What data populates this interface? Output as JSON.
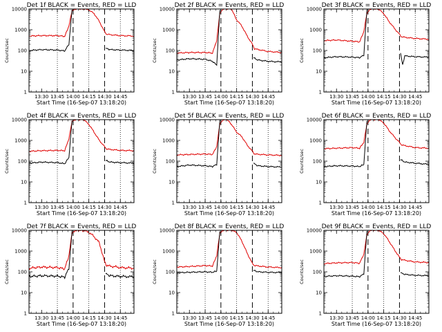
{
  "figure": {
    "start_time_label": "Start Time (16-Sep-07 13:18:20)",
    "ylabel": "Counts/sec"
  },
  "colors": {
    "events": "#000000",
    "lld": "#e00000",
    "background": "#ffffff"
  },
  "chart_data": [
    {
      "type": "line",
      "title": "Det 1f BLACK = Events, RED = LLD",
      "xlabel": "Start Time (16-Sep-07 13:18:20)",
      "ylabel": "Counts/sec",
      "xlim": [
        "13:18",
        "14:58"
      ],
      "ylim": [
        1,
        10000
      ],
      "yscale": "log",
      "xtick_labels": [
        "13:30",
        "13:45",
        "14:00",
        "14:15",
        "14:30",
        "14:45"
      ],
      "ytick_labels": [
        "1",
        "10",
        "100",
        "1000",
        "10000"
      ],
      "dotted_lines": [
        "13:45",
        "14:15",
        "14:45"
      ],
      "dashed_lines": [
        "14:00",
        "14:30"
      ],
      "series": [
        {
          "name": "LLD",
          "color": "#e00000",
          "x": [
            "13:18",
            "13:30",
            "13:45",
            "13:52",
            "13:56",
            "13:59",
            "14:02",
            "14:06",
            "14:10",
            "14:15",
            "14:20",
            "14:25",
            "14:30",
            "14:32",
            "14:45",
            "14:58"
          ],
          "y": [
            500,
            520,
            520,
            480,
            1500,
            8000,
            10000,
            10000,
            10000,
            9000,
            6000,
            2500,
            800,
            600,
            520,
            500
          ]
        },
        {
          "name": "Events",
          "color": "#000000",
          "x": [
            "13:18",
            "13:30",
            "13:45",
            "13:52",
            "13:56",
            "13:59",
            "14:30",
            "14:31",
            "14:35",
            "14:45",
            "14:58"
          ],
          "y": [
            100,
            110,
            105,
            95,
            200,
            9000,
            null,
            130,
            110,
            105,
            100
          ]
        }
      ]
    },
    {
      "type": "line",
      "title": "Det 2f BLACK = Events, RED = LLD",
      "xlabel": "Start Time (16-Sep-07 13:18:20)",
      "ylabel": "Counts/sec",
      "xlim": [
        "13:18",
        "14:58"
      ],
      "ylim": [
        1,
        10000
      ],
      "yscale": "log",
      "xtick_labels": [
        "13:30",
        "13:45",
        "14:00",
        "14:15",
        "14:30",
        "14:45"
      ],
      "ytick_labels": [
        "1",
        "10",
        "100",
        "1000",
        "10000"
      ],
      "dotted_lines": [
        "13:45",
        "14:15",
        "14:45"
      ],
      "dashed_lines": [
        "14:00",
        "14:30"
      ],
      "series": [
        {
          "name": "LLD",
          "color": "#e00000",
          "x": [
            "13:18",
            "13:30",
            "13:45",
            "13:52",
            "13:56",
            "13:59",
            "14:02",
            "14:06",
            "14:10",
            "14:15",
            "14:20",
            "14:25",
            "14:30",
            "14:32",
            "14:45",
            "14:58"
          ],
          "y": [
            75,
            80,
            80,
            75,
            300,
            6000,
            10000,
            10000,
            10000,
            3000,
            1500,
            500,
            200,
            120,
            90,
            80
          ]
        },
        {
          "name": "Events",
          "color": "#000000",
          "x": [
            "13:18",
            "13:30",
            "13:45",
            "13:52",
            "13:56",
            "13:59",
            "14:30",
            "14:31",
            "14:35",
            "14:45",
            "14:58"
          ],
          "y": [
            35,
            40,
            38,
            30,
            20,
            9000,
            null,
            45,
            35,
            30,
            28
          ]
        }
      ]
    },
    {
      "type": "line",
      "title": "Det 3f BLACK = Events, RED = LLD",
      "xlabel": "Start Time (16-Sep-07 13:18:20)",
      "ylabel": "Counts/sec",
      "xlim": [
        "13:18",
        "14:58"
      ],
      "ylim": [
        1,
        10000
      ],
      "yscale": "log",
      "xtick_labels": [
        "13:30",
        "13:45",
        "14:00",
        "14:15",
        "14:30",
        "14:45"
      ],
      "ytick_labels": [
        "1",
        "10",
        "100",
        "1000",
        "10000"
      ],
      "dotted_lines": [
        "13:45",
        "14:15",
        "14:45"
      ],
      "dashed_lines": [
        "14:00",
        "14:30"
      ],
      "series": [
        {
          "name": "LLD",
          "color": "#e00000",
          "x": [
            "13:18",
            "13:30",
            "13:45",
            "13:52",
            "13:56",
            "13:59",
            "14:02",
            "14:06",
            "14:10",
            "14:15",
            "14:20",
            "14:25",
            "14:30",
            "14:32",
            "14:45",
            "14:58"
          ],
          "y": [
            300,
            320,
            280,
            260,
            800,
            6000,
            10000,
            10000,
            10000,
            6000,
            2500,
            1200,
            600,
            450,
            380,
            350
          ]
        },
        {
          "name": "Events",
          "color": "#000000",
          "x": [
            "13:18",
            "13:30",
            "13:45",
            "13:52",
            "13:56",
            "13:59",
            "14:30",
            "14:31",
            "14:33",
            "14:35",
            "14:45",
            "14:58"
          ],
          "y": [
            45,
            50,
            48,
            45,
            60,
            9000,
            null,
            75,
            20,
            55,
            50,
            48
          ]
        }
      ]
    },
    {
      "type": "line",
      "title": "Det 4f BLACK = Events, RED = LLD",
      "xlabel": "Start Time (16-Sep-07 13:18:20)",
      "ylabel": "Counts/sec",
      "xlim": [
        "13:18",
        "14:58"
      ],
      "ylim": [
        1,
        10000
      ],
      "yscale": "log",
      "xtick_labels": [
        "13:30",
        "13:45",
        "14:00",
        "14:15",
        "14:30",
        "14:45"
      ],
      "ytick_labels": [
        "1",
        "10",
        "100",
        "1000",
        "10000"
      ],
      "dotted_lines": [
        "13:45",
        "14:15",
        "14:45"
      ],
      "dashed_lines": [
        "14:00",
        "14:30"
      ],
      "series": [
        {
          "name": "LLD",
          "color": "#e00000",
          "x": [
            "13:18",
            "13:30",
            "13:45",
            "13:52",
            "13:56",
            "13:59",
            "14:02",
            "14:06",
            "14:10",
            "14:15",
            "14:20",
            "14:25",
            "14:30",
            "14:32",
            "14:45",
            "14:58"
          ],
          "y": [
            300,
            320,
            330,
            320,
            1200,
            8000,
            10000,
            10000,
            10000,
            6000,
            2500,
            1000,
            500,
            380,
            330,
            320
          ]
        },
        {
          "name": "Events",
          "color": "#000000",
          "x": [
            "13:18",
            "13:30",
            "13:45",
            "13:52",
            "13:56",
            "13:59",
            "14:30",
            "14:31",
            "14:35",
            "14:45",
            "14:58"
          ],
          "y": [
            80,
            90,
            85,
            75,
            150,
            9000,
            null,
            110,
            90,
            85,
            80
          ]
        }
      ]
    },
    {
      "type": "line",
      "title": "Det 5f BLACK = Events, RED = LLD",
      "xlabel": "Start Time (16-Sep-07 13:18:20)",
      "ylabel": "Counts/sec",
      "xlim": [
        "13:18",
        "14:58"
      ],
      "ylim": [
        1,
        10000
      ],
      "yscale": "log",
      "xtick_labels": [
        "13:30",
        "13:45",
        "14:00",
        "14:15",
        "14:30",
        "14:45"
      ],
      "ytick_labels": [
        "1",
        "10",
        "100",
        "1000",
        "10000"
      ],
      "dotted_lines": [
        "13:45",
        "14:15",
        "14:45"
      ],
      "dashed_lines": [
        "14:00",
        "14:30"
      ],
      "series": [
        {
          "name": "LLD",
          "color": "#e00000",
          "x": [
            "13:18",
            "13:30",
            "13:45",
            "13:52",
            "13:56",
            "13:59",
            "14:02",
            "14:06",
            "14:10",
            "14:15",
            "14:20",
            "14:25",
            "14:30",
            "14:32",
            "14:45",
            "14:58"
          ],
          "y": [
            200,
            210,
            220,
            210,
            500,
            6000,
            10000,
            10000,
            6000,
            2500,
            1500,
            600,
            300,
            220,
            200,
            190
          ]
        },
        {
          "name": "Events",
          "color": "#000000",
          "x": [
            "13:18",
            "13:30",
            "13:45",
            "13:52",
            "13:56",
            "13:59",
            "14:30",
            "14:31",
            "14:35",
            "14:45",
            "14:58"
          ],
          "y": [
            55,
            65,
            60,
            55,
            70,
            9000,
            null,
            80,
            60,
            55,
            52
          ]
        }
      ]
    },
    {
      "type": "line",
      "title": "Det 6f BLACK = Events, RED = LLD",
      "xlabel": "Start Time (16-Sep-07 13:18:20)",
      "ylabel": "Counts/sec",
      "xlim": [
        "13:18",
        "14:58"
      ],
      "ylim": [
        1,
        10000
      ],
      "yscale": "log",
      "xtick_labels": [
        "13:30",
        "13:45",
        "14:00",
        "14:15",
        "14:30",
        "14:45"
      ],
      "ytick_labels": [
        "1",
        "10",
        "100",
        "1000",
        "10000"
      ],
      "dotted_lines": [
        "13:45",
        "14:15",
        "14:45"
      ],
      "dashed_lines": [
        "14:00",
        "14:30"
      ],
      "series": [
        {
          "name": "LLD",
          "color": "#e00000",
          "x": [
            "13:18",
            "13:30",
            "13:45",
            "13:52",
            "13:56",
            "13:59",
            "14:02",
            "14:06",
            "14:10",
            "14:15",
            "14:20",
            "14:25",
            "14:30",
            "14:32",
            "14:45",
            "14:58"
          ],
          "y": [
            400,
            420,
            450,
            420,
            800,
            6000,
            10000,
            10000,
            10000,
            7000,
            3000,
            1500,
            800,
            600,
            450,
            420
          ]
        },
        {
          "name": "Events",
          "color": "#000000",
          "x": [
            "13:18",
            "13:30",
            "13:45",
            "13:52",
            "13:56",
            "13:59",
            "14:30",
            "14:31",
            "14:35",
            "14:45",
            "14:58"
          ],
          "y": [
            55,
            60,
            58,
            55,
            70,
            9000,
            null,
            120,
            90,
            80,
            70
          ]
        }
      ]
    },
    {
      "type": "line",
      "title": "Det 7f BLACK = Events, RED = LLD",
      "xlabel": "Start Time (16-Sep-07 13:18:20)",
      "ylabel": "Counts/sec",
      "xlim": [
        "13:18",
        "14:58"
      ],
      "ylim": [
        1,
        10000
      ],
      "yscale": "log",
      "xtick_labels": [
        "13:30",
        "13:45",
        "14:00",
        "14:15",
        "14:30",
        "14:45"
      ],
      "ytick_labels": [
        "1",
        "10",
        "100",
        "1000",
        "10000"
      ],
      "dotted_lines": [
        "13:45",
        "14:15",
        "14:45"
      ],
      "dashed_lines": [
        "14:00",
        "14:30"
      ],
      "series": [
        {
          "name": "LLD",
          "color": "#e00000",
          "x": [
            "13:18",
            "13:30",
            "13:45",
            "13:52",
            "13:56",
            "13:59",
            "14:02",
            "14:06",
            "14:10",
            "14:15",
            "14:20",
            "14:25",
            "14:30",
            "14:32",
            "14:45",
            "14:58"
          ],
          "y": [
            150,
            170,
            160,
            140,
            600,
            7000,
            10000,
            10000,
            10000,
            8000,
            5000,
            2500,
            300,
            200,
            160,
            150
          ]
        },
        {
          "name": "Events",
          "color": "#000000",
          "x": [
            "13:18",
            "13:30",
            "13:45",
            "13:52",
            "13:56",
            "13:59",
            "14:30",
            "14:31",
            "14:35",
            "14:45",
            "14:58"
          ],
          "y": [
            60,
            65,
            62,
            55,
            150,
            9000,
            null,
            80,
            65,
            60,
            58
          ]
        }
      ]
    },
    {
      "type": "line",
      "title": "Det 8f BLACK = Events, RED = LLD",
      "xlabel": "Start Time (16-Sep-07 13:18:20)",
      "ylabel": "Counts/sec",
      "xlim": [
        "13:18",
        "14:58"
      ],
      "ylim": [
        1,
        10000
      ],
      "yscale": "log",
      "xtick_labels": [
        "13:30",
        "13:45",
        "14:00",
        "14:15",
        "14:30",
        "14:45"
      ],
      "ytick_labels": [
        "1",
        "10",
        "100",
        "1000",
        "10000"
      ],
      "dotted_lines": [
        "13:45",
        "14:15",
        "14:45"
      ],
      "dashed_lines": [
        "14:00",
        "14:30"
      ],
      "series": [
        {
          "name": "LLD",
          "color": "#e00000",
          "x": [
            "13:18",
            "13:30",
            "13:45",
            "13:52",
            "13:56",
            "13:59",
            "14:02",
            "14:06",
            "14:10",
            "14:15",
            "14:20",
            "14:25",
            "14:30",
            "14:32",
            "14:45",
            "14:58"
          ],
          "y": [
            170,
            180,
            200,
            190,
            600,
            7000,
            10000,
            10000,
            10000,
            8000,
            3000,
            800,
            250,
            200,
            170,
            160
          ]
        },
        {
          "name": "Events",
          "color": "#000000",
          "x": [
            "13:18",
            "13:30",
            "13:45",
            "13:52",
            "13:56",
            "13:59",
            "14:30",
            "14:31",
            "14:35",
            "14:45",
            "14:58"
          ],
          "y": [
            90,
            95,
            100,
            95,
            110,
            9000,
            null,
            120,
            100,
            95,
            92
          ]
        }
      ]
    },
    {
      "type": "line",
      "title": "Det 9f BLACK = Events, RED = LLD",
      "xlabel": "Start Time (16-Sep-07 13:18:20)",
      "ylabel": "Counts/sec",
      "xlim": [
        "13:18",
        "14:58"
      ],
      "ylim": [
        1,
        10000
      ],
      "yscale": "log",
      "xtick_labels": [
        "13:30",
        "13:45",
        "14:00",
        "14:15",
        "14:30",
        "14:45"
      ],
      "ytick_labels": [
        "1",
        "10",
        "100",
        "1000",
        "10000"
      ],
      "dotted_lines": [
        "13:45",
        "14:15",
        "14:45"
      ],
      "dashed_lines": [
        "14:00",
        "14:30"
      ],
      "series": [
        {
          "name": "LLD",
          "color": "#e00000",
          "x": [
            "13:18",
            "13:30",
            "13:45",
            "13:52",
            "13:56",
            "13:59",
            "14:02",
            "14:06",
            "14:10",
            "14:15",
            "14:20",
            "14:25",
            "14:30",
            "14:32",
            "14:45",
            "14:58"
          ],
          "y": [
            250,
            270,
            280,
            260,
            700,
            6000,
            10000,
            10000,
            10000,
            7000,
            3000,
            1200,
            500,
            380,
            300,
            280
          ]
        },
        {
          "name": "Events",
          "color": "#000000",
          "x": [
            "13:18",
            "13:30",
            "13:45",
            "13:52",
            "13:56",
            "13:59",
            "14:30",
            "14:31",
            "14:35",
            "14:45",
            "14:58"
          ],
          "y": [
            60,
            65,
            62,
            58,
            80,
            9000,
            null,
            90,
            75,
            68,
            65
          ]
        }
      ]
    }
  ]
}
